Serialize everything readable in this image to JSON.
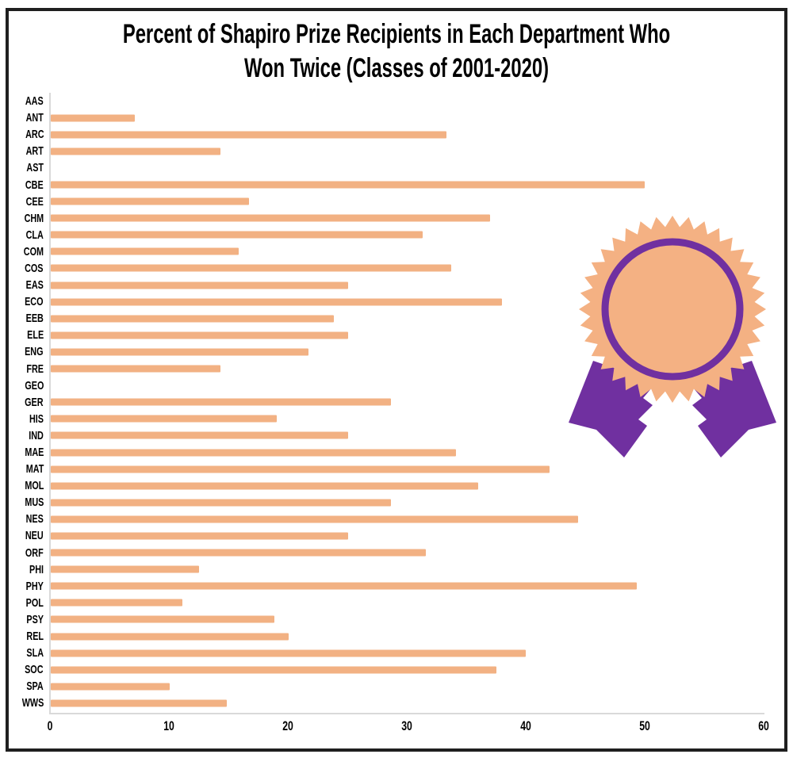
{
  "chart_data": {
    "type": "bar",
    "orientation": "horizontal",
    "title": "Percent of Shapiro Prize Recipients in Each Department Who Won Twice (Classes of 2001-2020)",
    "title_lines": [
      "Percent of Shapiro Prize Recipients in Each Department Who",
      "Won Twice (Classes of 2001-2020)"
    ],
    "xlabel": "",
    "ylabel": "",
    "grid": false,
    "legend": false,
    "xlim": [
      0,
      60
    ],
    "x_ticks": [
      0,
      10,
      20,
      30,
      40,
      50,
      60
    ],
    "categories": [
      "AAS",
      "ANT",
      "ARC",
      "ART",
      "AST",
      "CBE",
      "CEE",
      "CHM",
      "CLA",
      "COM",
      "COS",
      "EAS",
      "ECO",
      "EEB",
      "ELE",
      "ENG",
      "FRE",
      "GEO",
      "GER",
      "HIS",
      "IND",
      "MAE",
      "MAT",
      "MOL",
      "MUS",
      "NES",
      "NEU",
      "ORF",
      "PHI",
      "PHY",
      "POL",
      "PSY",
      "REL",
      "SLA",
      "SOC",
      "SPA",
      "WWS"
    ],
    "values": [
      0,
      7.1,
      33.3,
      14.3,
      0,
      50,
      16.7,
      37,
      31.3,
      15.8,
      33.7,
      25,
      38,
      23.8,
      25,
      21.7,
      14.3,
      0,
      28.6,
      19,
      25,
      34.1,
      42,
      36,
      28.6,
      44.4,
      25,
      31.6,
      12.5,
      49.3,
      11.1,
      18.8,
      20,
      40,
      37.5,
      10,
      14.8
    ]
  },
  "theme": {
    "bar_color": "#F2B183",
    "medal_fill": "#F4B183",
    "medal_purple": "#7030A0",
    "axis_line_color": "#D9D9D9",
    "frame_border_color": "#1F1F1F",
    "text_color": "#000000"
  },
  "decor": {
    "medal_icon": "award-ribbon-with-starburst-seal"
  }
}
